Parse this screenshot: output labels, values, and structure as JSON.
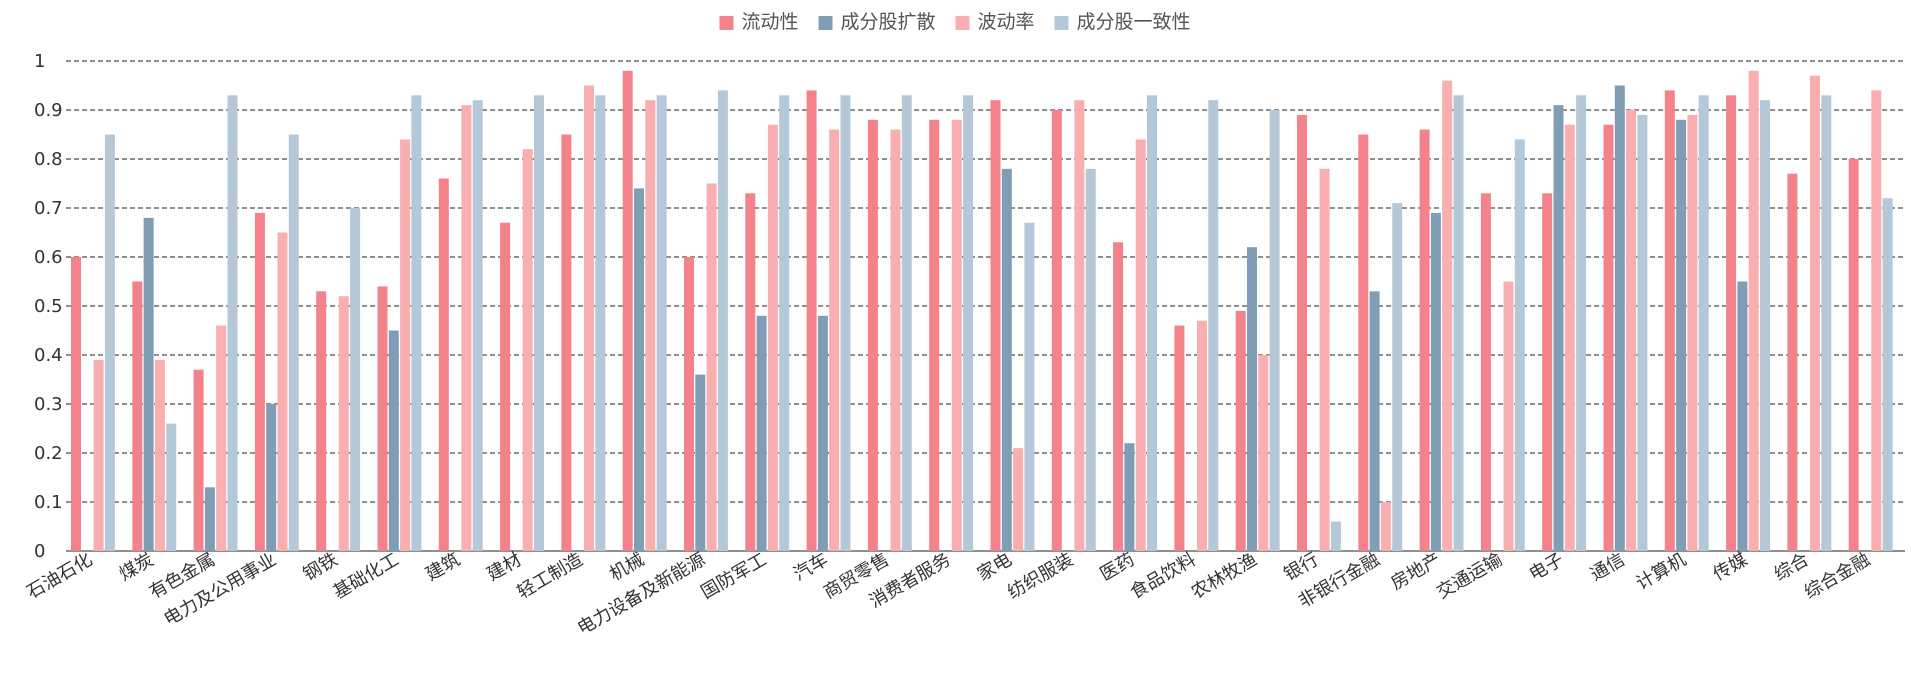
{
  "chart_data": {
    "type": "bar",
    "title": "",
    "xlabel": "",
    "ylabel": "",
    "ylim": [
      0,
      1
    ],
    "yticks": [
      "0",
      "0.1",
      "0.2",
      "0.3",
      "0.4",
      "0.5",
      "0.6",
      "0.7",
      "0.8",
      "0.9",
      "1"
    ],
    "grid": true,
    "legend_position": "top-center",
    "categories": [
      "石油石化",
      "煤炭",
      "有色金属",
      "电力及公用事业",
      "钢铁",
      "基础化工",
      "建筑",
      "建材",
      "轻工制造",
      "机械",
      "电力设备及新能源",
      "国防军工",
      "汽车",
      "商贸零售",
      "消费者服务",
      "家电",
      "纺织服装",
      "医药",
      "食品饮料",
      "农林牧渔",
      "银行",
      "非银行金融",
      "房地产",
      "交通运输",
      "电子",
      "通信",
      "计算机",
      "传媒",
      "综合",
      "综合金融"
    ],
    "series": [
      {
        "name": "流动性",
        "color": "#f4828a",
        "values": [
          0.6,
          0.55,
          0.37,
          0.69,
          0.53,
          0.54,
          0.76,
          0.67,
          0.85,
          0.98,
          0.6,
          0.73,
          0.94,
          0.88,
          0.88,
          0.92,
          0.9,
          0.63,
          0.46,
          0.49,
          0.89,
          0.85,
          0.86,
          0.73,
          0.73,
          0.87,
          0.94,
          0.93,
          0.77,
          0.8
        ]
      },
      {
        "name": "成分股扩散",
        "color": "#7f9eb6",
        "values": [
          0,
          0.68,
          0.13,
          0.3,
          0,
          0.45,
          0,
          0,
          0,
          0.74,
          0.36,
          0.48,
          0.48,
          0,
          0,
          0.78,
          0,
          0.22,
          0,
          0.62,
          0,
          0.53,
          0.69,
          0,
          0.91,
          0.95,
          0.88,
          0.55,
          0,
          0
        ]
      },
      {
        "name": "波动率",
        "color": "#f9aeb0",
        "values": [
          0.39,
          0.39,
          0.46,
          0.65,
          0.52,
          0.84,
          0.91,
          0.82,
          0.95,
          0.92,
          0.75,
          0.87,
          0.86,
          0.86,
          0.88,
          0.21,
          0.92,
          0.84,
          0.47,
          0.4,
          0.78,
          0.1,
          0.96,
          0.55,
          0.87,
          0.9,
          0.89,
          0.98,
          0.97,
          0.94
        ]
      },
      {
        "name": "成分股一致性",
        "color": "#b5c8d7",
        "values": [
          0.85,
          0.26,
          0.93,
          0.85,
          0.7,
          0.93,
          0.92,
          0.93,
          0.93,
          0.93,
          0.94,
          0.93,
          0.93,
          0.93,
          0.93,
          0.67,
          0.78,
          0.93,
          0.92,
          0.9,
          0.06,
          0.71,
          0.93,
          0.84,
          0.93,
          0.89,
          0.93,
          0.92,
          0.93,
          0.72
        ]
      }
    ]
  }
}
